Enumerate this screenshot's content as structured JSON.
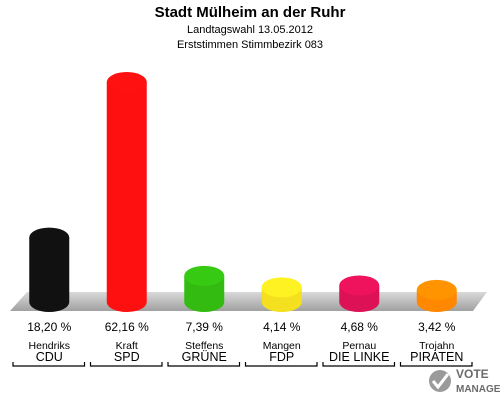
{
  "chart_data": {
    "type": "bar",
    "title": "Stadt Mülheim an der Ruhr",
    "subtitle_line1": "Landtagswahl 13.05.2012",
    "subtitle_line2": "Erststimmen Stimmbezirk 083",
    "categories": [
      "CDU",
      "SPD",
      "GRÜNE",
      "FDP",
      "DIE LINKE",
      "PIRATEN"
    ],
    "candidates": [
      "Hendriks",
      "Kraft",
      "Steffens",
      "Mangen",
      "Pernau",
      "Trojahn"
    ],
    "values": [
      18.2,
      62.16,
      7.39,
      4.14,
      4.68,
      3.42
    ],
    "value_labels": [
      "18,20 %",
      "62,16 %",
      "7,39 %",
      "4,14 %",
      "4,68 %",
      "3,42 %"
    ],
    "colors": [
      "#111111",
      "#ff1010",
      "#33bb11",
      "#f5e020",
      "#dd1155",
      "#ff8800"
    ],
    "ylim": [
      0,
      65
    ],
    "grid": false
  },
  "logo": {
    "line1": "VOTE",
    "line2": "MANAGER"
  }
}
